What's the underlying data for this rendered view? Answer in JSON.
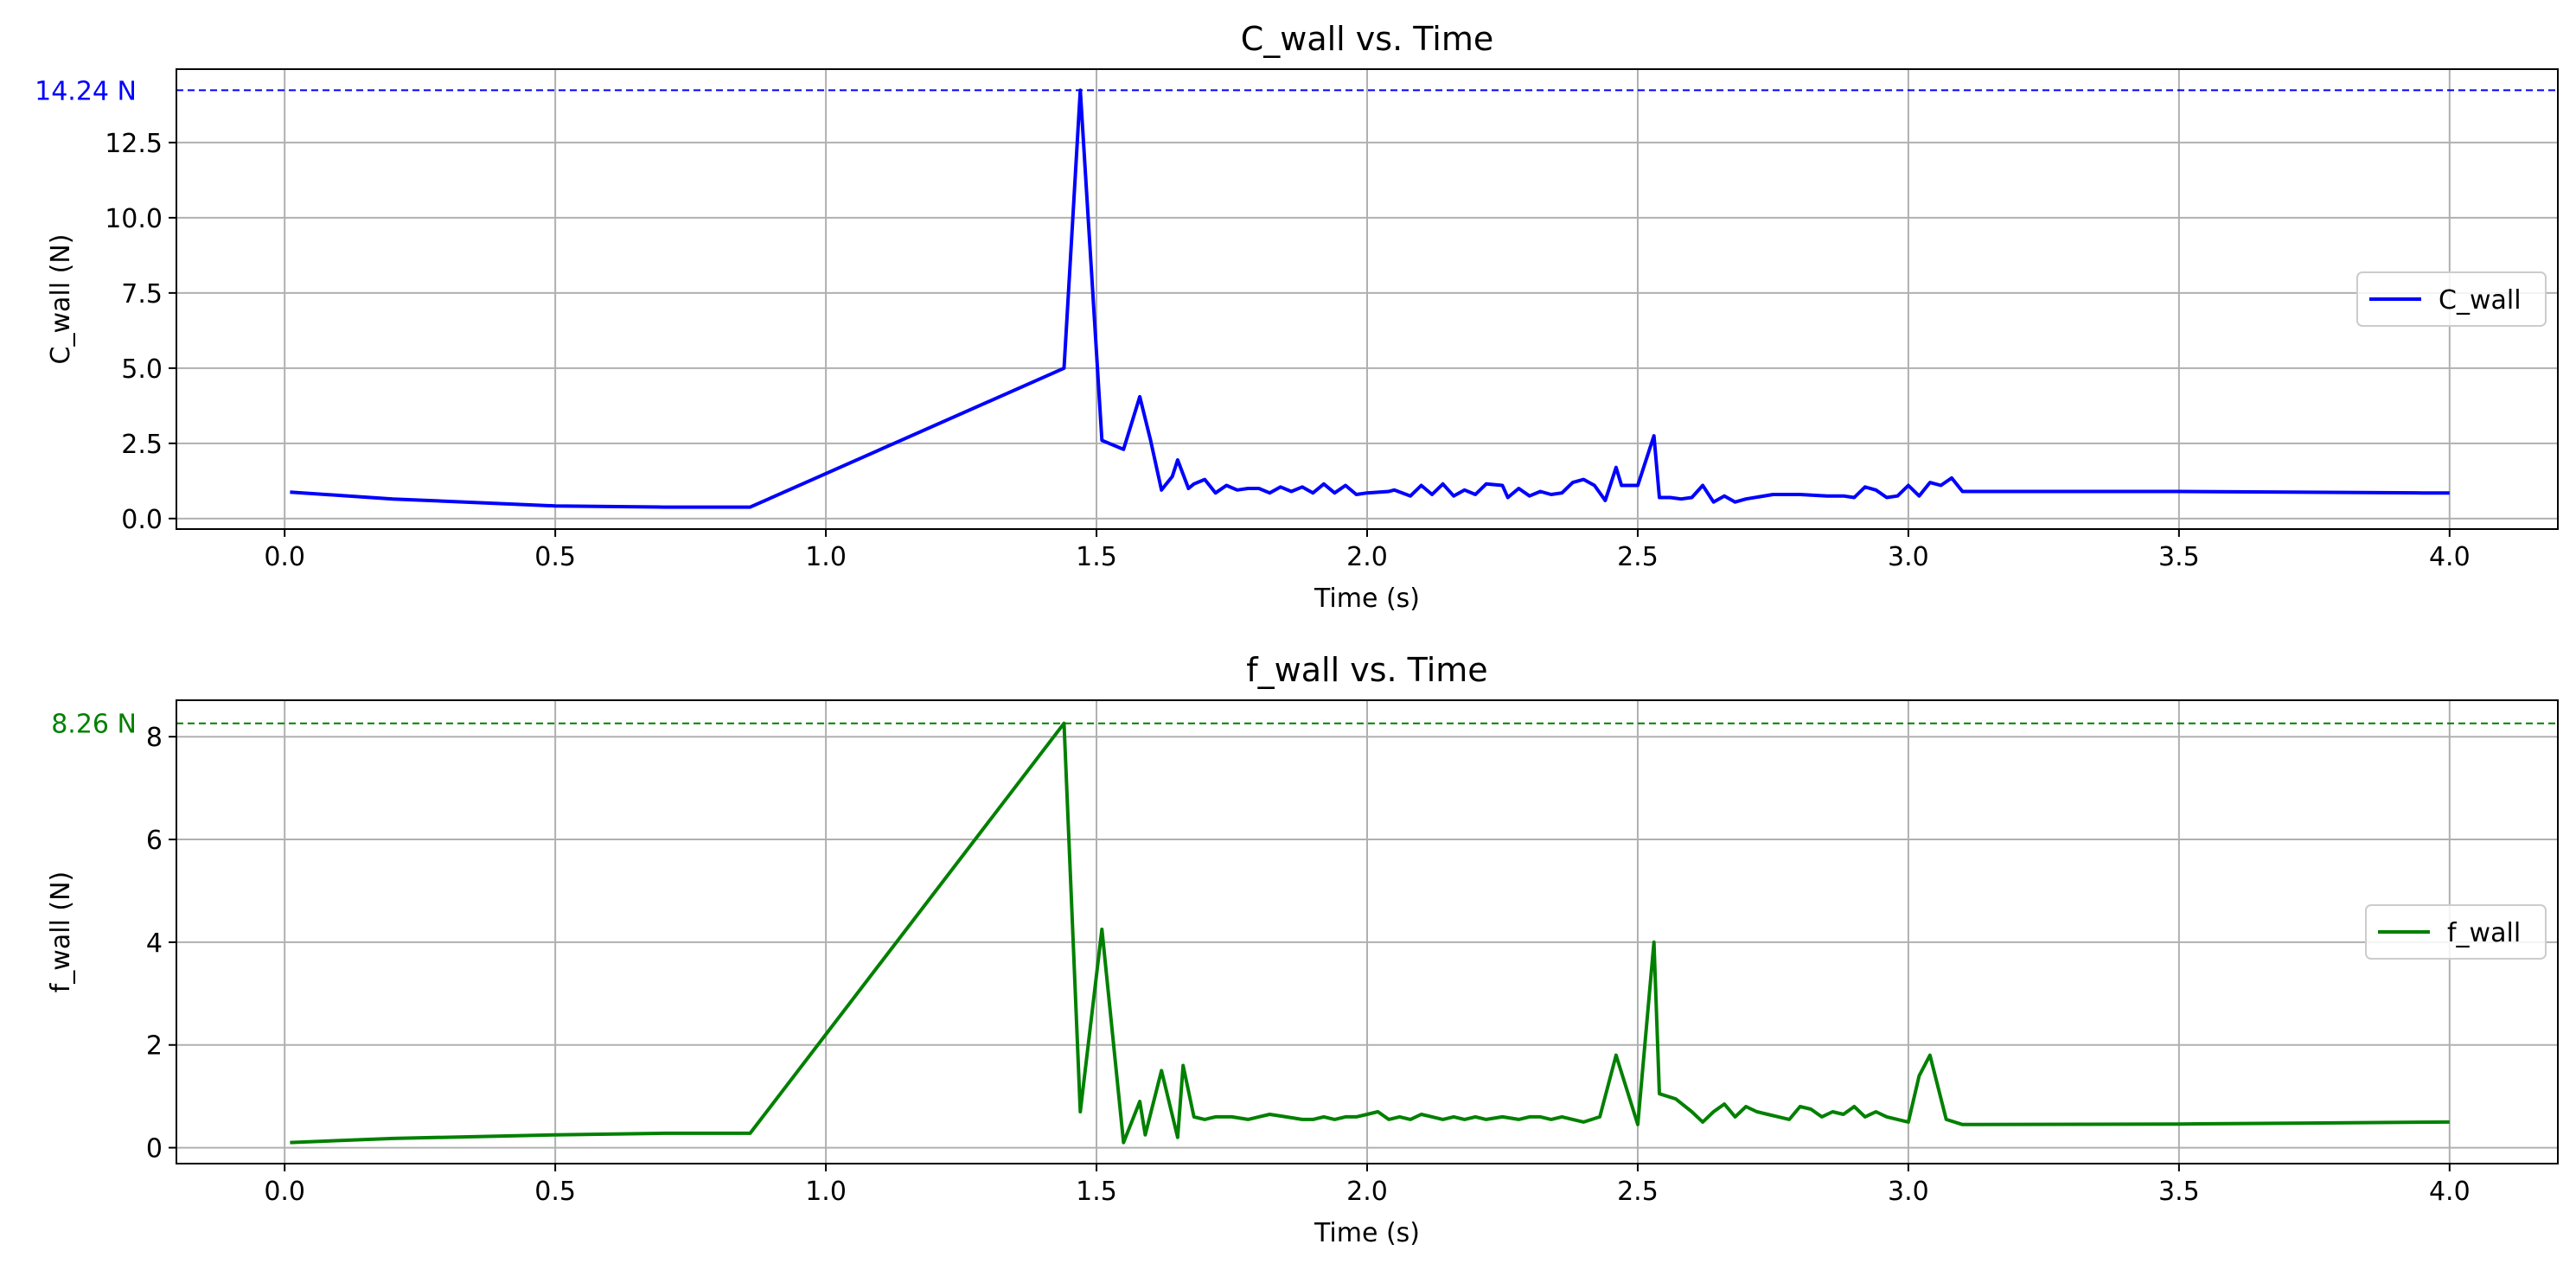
{
  "chart_data": [
    {
      "type": "line",
      "title": "C_wall vs. Time",
      "xlabel": "Time (s)",
      "ylabel": "C_wall (N)",
      "xlim": [
        -0.2,
        4.2
      ],
      "ylim": [
        -0.35,
        14.94
      ],
      "xticks": [
        0.0,
        0.5,
        1.0,
        1.5,
        2.0,
        2.5,
        3.0,
        3.5,
        4.0
      ],
      "xtick_labels": [
        "0.0",
        "0.5",
        "1.0",
        "1.5",
        "2.0",
        "2.5",
        "3.0",
        "3.5",
        "4.0"
      ],
      "yticks": [
        0.0,
        2.5,
        5.0,
        7.5,
        10.0,
        12.5
      ],
      "ytick_labels": [
        "0.0",
        "2.5",
        "5.0",
        "7.5",
        "10.0",
        "12.5"
      ],
      "grid": true,
      "legend_position": "center-right",
      "peak": {
        "value": 14.24,
        "label": "14.24 N",
        "color": "#0000ff"
      },
      "series": [
        {
          "name": "C_wall",
          "color": "#0000ff",
          "x": [
            0.01,
            0.2,
            0.5,
            0.7,
            0.86,
            1.44,
            1.47,
            1.51,
            1.55,
            1.58,
            1.6,
            1.62,
            1.64,
            1.65,
            1.67,
            1.68,
            1.7,
            1.72,
            1.74,
            1.76,
            1.78,
            1.8,
            1.82,
            1.84,
            1.86,
            1.88,
            1.9,
            1.92,
            1.94,
            1.96,
            1.98,
            2.0,
            2.04,
            2.05,
            2.08,
            2.1,
            2.12,
            2.14,
            2.16,
            2.18,
            2.2,
            2.22,
            2.25,
            2.26,
            2.28,
            2.3,
            2.32,
            2.34,
            2.36,
            2.38,
            2.4,
            2.42,
            2.44,
            2.46,
            2.47,
            2.5,
            2.53,
            2.54,
            2.56,
            2.58,
            2.6,
            2.62,
            2.64,
            2.66,
            2.68,
            2.7,
            2.75,
            2.8,
            2.85,
            2.88,
            2.9,
            2.92,
            2.94,
            2.96,
            2.98,
            3.0,
            3.02,
            3.04,
            3.06,
            3.08,
            3.1,
            3.5,
            3.95,
            4.0
          ],
          "y": [
            0.88,
            0.65,
            0.42,
            0.38,
            0.38,
            5.0,
            14.24,
            2.6,
            2.3,
            4.05,
            2.6,
            0.95,
            1.4,
            1.95,
            1.0,
            1.15,
            1.3,
            0.85,
            1.1,
            0.95,
            1.0,
            1.0,
            0.85,
            1.05,
            0.9,
            1.05,
            0.85,
            1.15,
            0.85,
            1.1,
            0.8,
            0.85,
            0.9,
            0.95,
            0.75,
            1.1,
            0.8,
            1.15,
            0.75,
            0.95,
            0.8,
            1.15,
            1.1,
            0.7,
            1.0,
            0.75,
            0.9,
            0.8,
            0.85,
            1.2,
            1.3,
            1.1,
            0.6,
            1.7,
            1.1,
            1.1,
            2.75,
            0.7,
            0.7,
            0.65,
            0.7,
            1.1,
            0.55,
            0.75,
            0.55,
            0.65,
            0.8,
            0.8,
            0.75,
            0.75,
            0.7,
            1.05,
            0.95,
            0.7,
            0.75,
            1.1,
            0.75,
            1.2,
            1.1,
            1.35,
            0.9,
            0.9,
            0.85,
            0.85
          ]
        }
      ]
    },
    {
      "type": "line",
      "title": "f_wall vs. Time",
      "xlabel": "Time (s)",
      "ylabel": "f_wall (N)",
      "xlim": [
        -0.2,
        4.2
      ],
      "ylim": [
        -0.31,
        8.71
      ],
      "xticks": [
        0.0,
        0.5,
        1.0,
        1.5,
        2.0,
        2.5,
        3.0,
        3.5,
        4.0
      ],
      "xtick_labels": [
        "0.0",
        "0.5",
        "1.0",
        "1.5",
        "2.0",
        "2.5",
        "3.0",
        "3.5",
        "4.0"
      ],
      "yticks": [
        0,
        2,
        4,
        6,
        8
      ],
      "ytick_labels": [
        "0",
        "2",
        "4",
        "6",
        "8"
      ],
      "grid": true,
      "legend_position": "center-right",
      "peak": {
        "value": 8.26,
        "label": "8.26 N",
        "color": "#008000"
      },
      "series": [
        {
          "name": "f_wall",
          "color": "#008000",
          "x": [
            0.01,
            0.2,
            0.5,
            0.7,
            0.86,
            1.44,
            1.47,
            1.51,
            1.55,
            1.58,
            1.59,
            1.62,
            1.65,
            1.66,
            1.68,
            1.7,
            1.72,
            1.75,
            1.78,
            1.8,
            1.82,
            1.85,
            1.88,
            1.9,
            1.92,
            1.94,
            1.96,
            1.98,
            2.0,
            2.02,
            2.04,
            2.06,
            2.08,
            2.1,
            2.12,
            2.14,
            2.16,
            2.18,
            2.2,
            2.22,
            2.25,
            2.28,
            2.3,
            2.32,
            2.34,
            2.36,
            2.38,
            2.4,
            2.43,
            2.46,
            2.5,
            2.53,
            2.54,
            2.57,
            2.6,
            2.62,
            2.64,
            2.66,
            2.68,
            2.7,
            2.72,
            2.74,
            2.76,
            2.78,
            2.8,
            2.82,
            2.84,
            2.86,
            2.88,
            2.9,
            2.92,
            2.94,
            2.96,
            2.98,
            3.0,
            3.02,
            3.04,
            3.07,
            3.1,
            3.5,
            4.0
          ],
          "y": [
            0.1,
            0.18,
            0.25,
            0.28,
            0.28,
            8.26,
            0.7,
            4.25,
            0.1,
            0.9,
            0.25,
            1.5,
            0.2,
            1.6,
            0.6,
            0.55,
            0.6,
            0.6,
            0.55,
            0.6,
            0.65,
            0.6,
            0.55,
            0.55,
            0.6,
            0.55,
            0.6,
            0.6,
            0.65,
            0.7,
            0.55,
            0.6,
            0.55,
            0.65,
            0.6,
            0.55,
            0.6,
            0.55,
            0.6,
            0.55,
            0.6,
            0.55,
            0.6,
            0.6,
            0.55,
            0.6,
            0.55,
            0.5,
            0.6,
            1.8,
            0.45,
            4.0,
            1.05,
            0.95,
            0.7,
            0.5,
            0.7,
            0.85,
            0.6,
            0.8,
            0.7,
            0.65,
            0.6,
            0.55,
            0.8,
            0.75,
            0.6,
            0.7,
            0.65,
            0.8,
            0.6,
            0.7,
            0.6,
            0.55,
            0.5,
            1.4,
            1.8,
            0.55,
            0.45,
            0.46,
            0.5
          ]
        }
      ]
    }
  ]
}
